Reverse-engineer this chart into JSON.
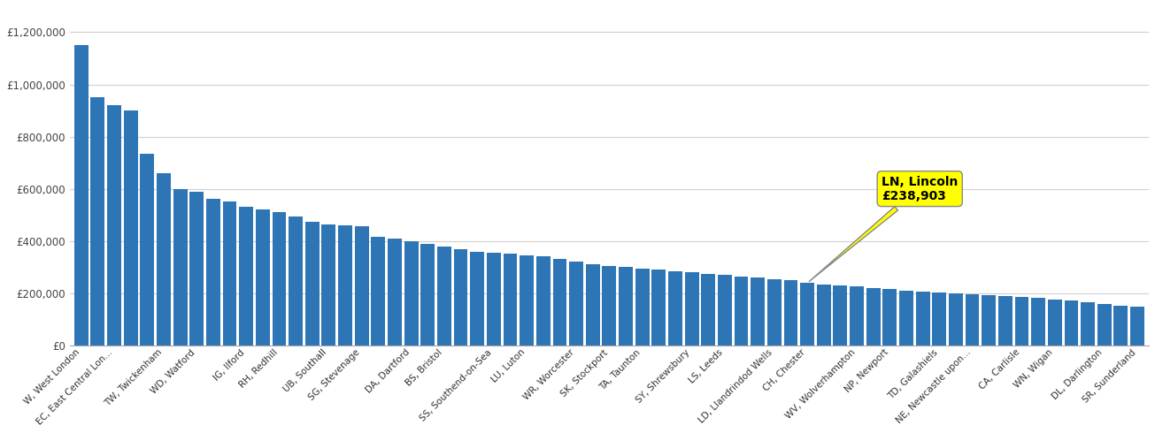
{
  "categories": [
    "W, West London",
    "EC, East Central Lon...",
    "TW, Twickenham",
    "WD, Watford",
    "IG, Ilford",
    "RH, Redhill",
    "UB, Southall",
    "SG, Stevenage",
    "DA, Dartford",
    "BS, Bristol",
    "SS, Southend-on-Sea",
    "LU, Luton",
    "WR, Worcester",
    "SK, Stockport",
    "TA, Taunton",
    "SY, Shrewsbury",
    "LS, Leeds",
    "LD, Llandrindod Wells",
    "CH, Chester",
    "WV, Wolverhampton",
    "NP, Newport",
    "TD, Galashiels",
    "NE, Newcastle upon...",
    "CA, Carlisle",
    "WN, Wigan",
    "DL, Darlington",
    "SR, Sunderland"
  ],
  "values": [
    1150000,
    950000,
    920000,
    900000,
    735000,
    660000,
    600000,
    590000,
    560000,
    550000,
    530000,
    520000,
    510000,
    495000,
    475000,
    465000,
    460000,
    455000,
    415000,
    410000,
    400000,
    390000,
    380000,
    370000,
    360000,
    355000,
    350000,
    345000,
    340000,
    330000,
    320000,
    310000,
    305000,
    300000,
    295000,
    290000,
    285000,
    280000,
    275000,
    270000,
    265000,
    260000,
    255000,
    250000,
    238903,
    234000,
    230000,
    225000,
    220000,
    215000,
    210000,
    207000,
    204000,
    200000,
    197000,
    194000,
    190000,
    185000,
    181000,
    177000,
    172000,
    165000,
    160000,
    153000,
    148000
  ],
  "highlight_index": 44,
  "highlight_label": "LN, Lincoln\n£238,903",
  "bar_color": "#2e75b6",
  "highlight_color": "#ffff00",
  "background_color": "#ffffff",
  "grid_color": "#d0d0d0",
  "ylim": [
    0,
    1300000
  ],
  "ytick_values": [
    0,
    200000,
    400000,
    600000,
    800000,
    1000000,
    1200000
  ],
  "tick_labels": [
    "W, West London",
    "EC, East Central Lon...",
    "TW, Twickenham",
    "WD, Watford",
    "IG, Ilford",
    "RH, Redhill",
    "UB, Southall",
    "SG, Stevenage",
    "DA, Dartford",
    "BS, Bristol",
    "SS, Southend-on-Sea",
    "LU, Luton",
    "WR, Worcester",
    "SK, Stockport",
    "TA, Taunton",
    "SY, Shrewsbury",
    "LS, Leeds",
    "LD, Llandrindod Wells",
    "CH, Chester",
    "WV, Wolverhampton",
    "NP, Newport",
    "TD, Galashiels",
    "NE, Newcastle upon...",
    "CA, Carlisle",
    "WN, Wigan",
    "DL, Darlington",
    "SR, Sunderland"
  ]
}
